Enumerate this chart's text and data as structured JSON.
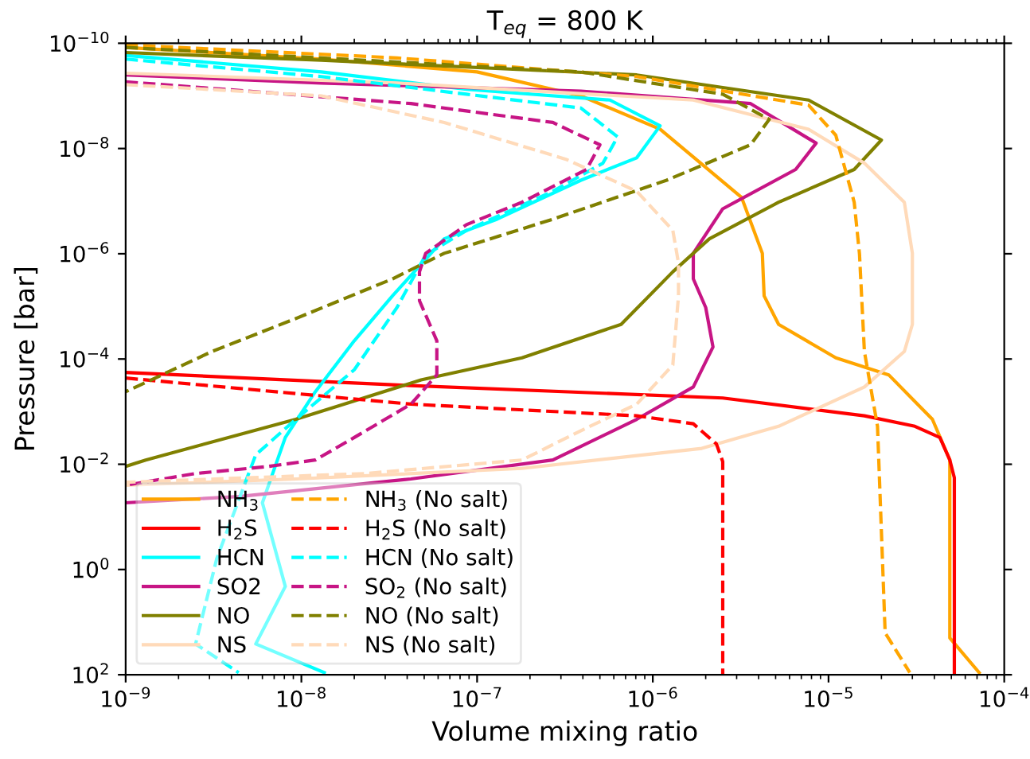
{
  "chart_data": {
    "type": "line",
    "title": "T$_{eq}$ = 800 K",
    "xlabel": "Volume mixing ratio",
    "ylabel": "Pressure [bar]",
    "log": "xy",
    "xlim": [
      1e-09,
      0.0001
    ],
    "ylim": [
      100,
      1e-10
    ],
    "xticks": [
      {
        "value": 1e-09,
        "label": "10$^{−9}$"
      },
      {
        "value": 1e-08,
        "label": "10$^{−8}$"
      },
      {
        "value": 1e-07,
        "label": "10$^{−7}$"
      },
      {
        "value": 1e-06,
        "label": "10$^{−6}$"
      },
      {
        "value": 1e-05,
        "label": "10$^{−5}$"
      },
      {
        "value": 0.0001,
        "label": "10$^{−4}$"
      }
    ],
    "yticks": [
      {
        "value": 1e-10,
        "label": "10$^{−10}$"
      },
      {
        "value": 1e-08,
        "label": "10$^{−8}$"
      },
      {
        "value": 1e-06,
        "label": "10$^{−6}$"
      },
      {
        "value": 0.0001,
        "label": "10$^{−4}$"
      },
      {
        "value": 0.01,
        "label": "10$^{−2}$"
      },
      {
        "value": 1,
        "label": "10$^{0}$"
      },
      {
        "value": 100,
        "label": "10$^{2}$"
      }
    ],
    "grid": false,
    "legend": "bottom left",
    "series": [
      {
        "name": "NH$_{3}$",
        "color": "#ffa500",
        "line_style": "solid",
        "x": [
          1e-09,
          1.3e-08,
          1e-07,
          3.9e-07,
          1.1e-06,
          3.2e-06,
          4.2e-06,
          4.3e-06,
          5.2e-06,
          1.1e-05,
          2.2e-05,
          3.9e-05,
          4.9e-05,
          4.9e-05,
          7.2e-05
        ],
        "values": [
          1.2e-10,
          2e-10,
          3.5e-10,
          1e-09,
          4.3e-09,
          8.5e-08,
          9.8e-07,
          6.3e-06,
          2.2e-05,
          9.5e-05,
          0.0002,
          0.0014,
          0.0083,
          20,
          91
        ]
      },
      {
        "name": "H$_{2}$S",
        "color": "#ff0000",
        "line_style": "solid",
        "x": [
          1e-09,
          4.2e-08,
          2.5e-06,
          1.6e-05,
          3.1e-05,
          4.3e-05,
          4.9e-05,
          5.2e-05,
          5.2e-05
        ],
        "values": [
          0.00018,
          0.00032,
          0.00055,
          0.0012,
          0.0019,
          0.0031,
          0.0083,
          0.018,
          100
        ]
      },
      {
        "name": "HCN",
        "color": "#00ffff",
        "line_style": "solid",
        "x": [
          1e-09,
          1.3e-08,
          8.7e-08,
          5.7e-07,
          1.1e-06,
          8.1e-07,
          3.9e-07,
          1.3e-07,
          6.5e-08,
          3.3e-08,
          2e-08,
          1.2e-08,
          8.1e-09,
          6e-09,
          8.1e-09,
          5.5e-09,
          1.35e-08
        ],
        "values": [
          1.7e-10,
          3.5e-10,
          7.5e-10,
          1.2e-09,
          3.7e-09,
          1.5e-08,
          4e-08,
          2.2e-07,
          5.2e-07,
          6.3e-06,
          4.5e-05,
          0.00042,
          0.0031,
          0.054,
          2.1,
          26,
          91
        ]
      },
      {
        "name": "SO2",
        "color": "#c71585",
        "line_style": "solid",
        "x": [
          1e-09,
          1.3e-08,
          3.9e-07,
          3.6e-06,
          8.5e-06,
          6.5e-06,
          2.5e-06,
          1.7e-06,
          1.7e-06,
          2e-06,
          2.2e-06,
          1.7e-06,
          8.1e-07,
          2.7e-07,
          4.2e-08,
          4.4e-09,
          1e-09
        ],
        "values": [
          4e-10,
          5.7e-10,
          8.1e-10,
          1.4e-09,
          7.9e-09,
          2.5e-08,
          1.4e-07,
          9.8e-07,
          3e-06,
          1.05e-05,
          5.9e-05,
          0.00034,
          0.0014,
          0.0083,
          0.019,
          0.041,
          0.054
        ]
      },
      {
        "name": "NO",
        "color": "#808000",
        "line_style": "solid",
        "x": [
          1e-09,
          1.3e-08,
          8.1e-07,
          7.7e-06,
          2e-05,
          1.4e-05,
          5.2e-06,
          2.1e-06,
          1.3e-06,
          6.6e-07,
          1.8e-07,
          4.8e-08,
          9.3e-09,
          1.3e-09,
          1e-09
        ],
        "values": [
          1.5e-10,
          2.1e-10,
          4e-10,
          1.2e-09,
          6.9e-09,
          2.5e-08,
          1.05e-07,
          5.2e-07,
          2.2e-06,
          2.2e-05,
          9.5e-05,
          0.00025,
          0.0014,
          0.0083,
          0.011
        ]
      },
      {
        "name": "NS",
        "color": "#ffdab9",
        "line_style": "solid",
        "x": [
          1e-09,
          3.5e-08,
          1.7e-06,
          7.7e-06,
          1.6e-05,
          2.7e-05,
          3e-05,
          3e-05,
          2.7e-05,
          1.6e-05,
          5.2e-06,
          1.9e-06,
          1.8e-07,
          9.3e-09,
          1e-09
        ],
        "values": [
          3.7e-10,
          5.7e-10,
          1.2e-09,
          4.3e-09,
          1.9e-08,
          1.05e-07,
          9.8e-07,
          2.2e-05,
          7.2e-05,
          0.00034,
          0.0019,
          0.005,
          0.012,
          0.019,
          0.025
        ]
      },
      {
        "name": "NH$_{3}$ (No salt)",
        "color": "#ffa500",
        "line_style": "dashed",
        "x": [
          1e-09,
          3.5e-08,
          8.1e-07,
          7.7e-06,
          1.1e-05,
          1.4e-05,
          1.5e-05,
          1.6e-05,
          1.9e-05,
          2.1e-05,
          2.9e-05
        ],
        "values": [
          1.07e-10,
          1.9e-10,
          4.3e-10,
          1.5e-09,
          5.6e-09,
          1.05e-07,
          1e-06,
          7.2e-05,
          0.0019,
          16,
          91
        ]
      },
      {
        "name": "H$_{2}$S (No salt)",
        "color": "#ff0000",
        "line_style": "dashed",
        "x": [
          1e-09,
          4.2e-08,
          8.1e-07,
          1.7e-06,
          2.3e-06,
          2.5e-06,
          2.5e-06
        ],
        "values": [
          0.00023,
          0.00072,
          0.0012,
          0.0017,
          0.0041,
          0.0089,
          100
        ]
      },
      {
        "name": "HCN (No salt)",
        "color": "#00ffff",
        "line_style": "dashed",
        "x": [
          1e-09,
          1.3e-08,
          8.7e-08,
          3.9e-07,
          6.3e-07,
          5.2e-07,
          2.7e-07,
          8.7e-08,
          5.1e-08,
          3.5e-08,
          2e-08,
          9.3e-09,
          5.5e-09,
          3.3e-09,
          2.5e-09,
          4.4e-09
        ],
        "values": [
          2e-10,
          4.3e-10,
          9.3e-10,
          1.7e-09,
          6e-09,
          1.9e-08,
          6.5e-08,
          3.6e-07,
          1.05e-06,
          1.05e-05,
          0.00016,
          0.0014,
          0.0066,
          0.62,
          26,
          91
        ]
      },
      {
        "name": "SO$_{2}$ (No salt)",
        "color": "#c71585",
        "line_style": "dashed",
        "x": [
          1e-09,
          4.2e-08,
          2.7e-07,
          5e-07,
          4.2e-07,
          1.8e-07,
          8.7e-08,
          5.1e-08,
          4.7e-08,
          4.7e-08,
          5.9e-08,
          5.9e-08,
          4.2e-08,
          2e-08,
          1.2e-08,
          6.5e-09,
          2.5e-09,
          1e-09
        ],
        "values": [
          5.4e-10,
          1.4e-09,
          3.2e-09,
          8.5e-09,
          2.5e-08,
          1.05e-07,
          2.8e-07,
          9.8e-07,
          2.2e-06,
          7.8e-06,
          4.5e-05,
          0.0002,
          0.00072,
          0.0031,
          0.0083,
          0.011,
          0.015,
          0.025
        ]
      },
      {
        "name": "NO (No salt)",
        "color": "#808000",
        "line_style": "dashed",
        "x": [
          1e-09,
          1.3e-08,
          3.9e-07,
          2.5e-06,
          4.6e-06,
          3.6e-06,
          1.2e-06,
          2.7e-07,
          6.5e-08,
          3.3e-08,
          9.3e-09,
          3.1e-09,
          1e-09
        ],
        "values": [
          1.2e-10,
          1.9e-10,
          3.5e-10,
          9.3e-10,
          2.8e-09,
          8.5e-09,
          4e-08,
          2.2e-07,
          9.8e-07,
          3e-06,
          1.7e-05,
          7.2e-05,
          0.00042
        ]
      },
      {
        "name": "NS (No salt)",
        "color": "#ffdab9",
        "line_style": "dashed",
        "x": [
          1e-09,
          1.3e-08,
          6.5e-08,
          3.2e-07,
          8.1e-07,
          1.3e-06,
          1.4e-06,
          1.4e-06,
          1.3e-06,
          8.1e-07,
          3.9e-07,
          1.8e-07,
          2.3e-08,
          1e-09
        ],
        "values": [
          6.1e-10,
          1e-09,
          3.2e-09,
          1.6e-08,
          6.5e-08,
          3.6e-07,
          1.5e-06,
          6.3e-06,
          0.00013,
          0.00072,
          0.0023,
          0.0083,
          0.015,
          0.022
        ]
      }
    ]
  }
}
